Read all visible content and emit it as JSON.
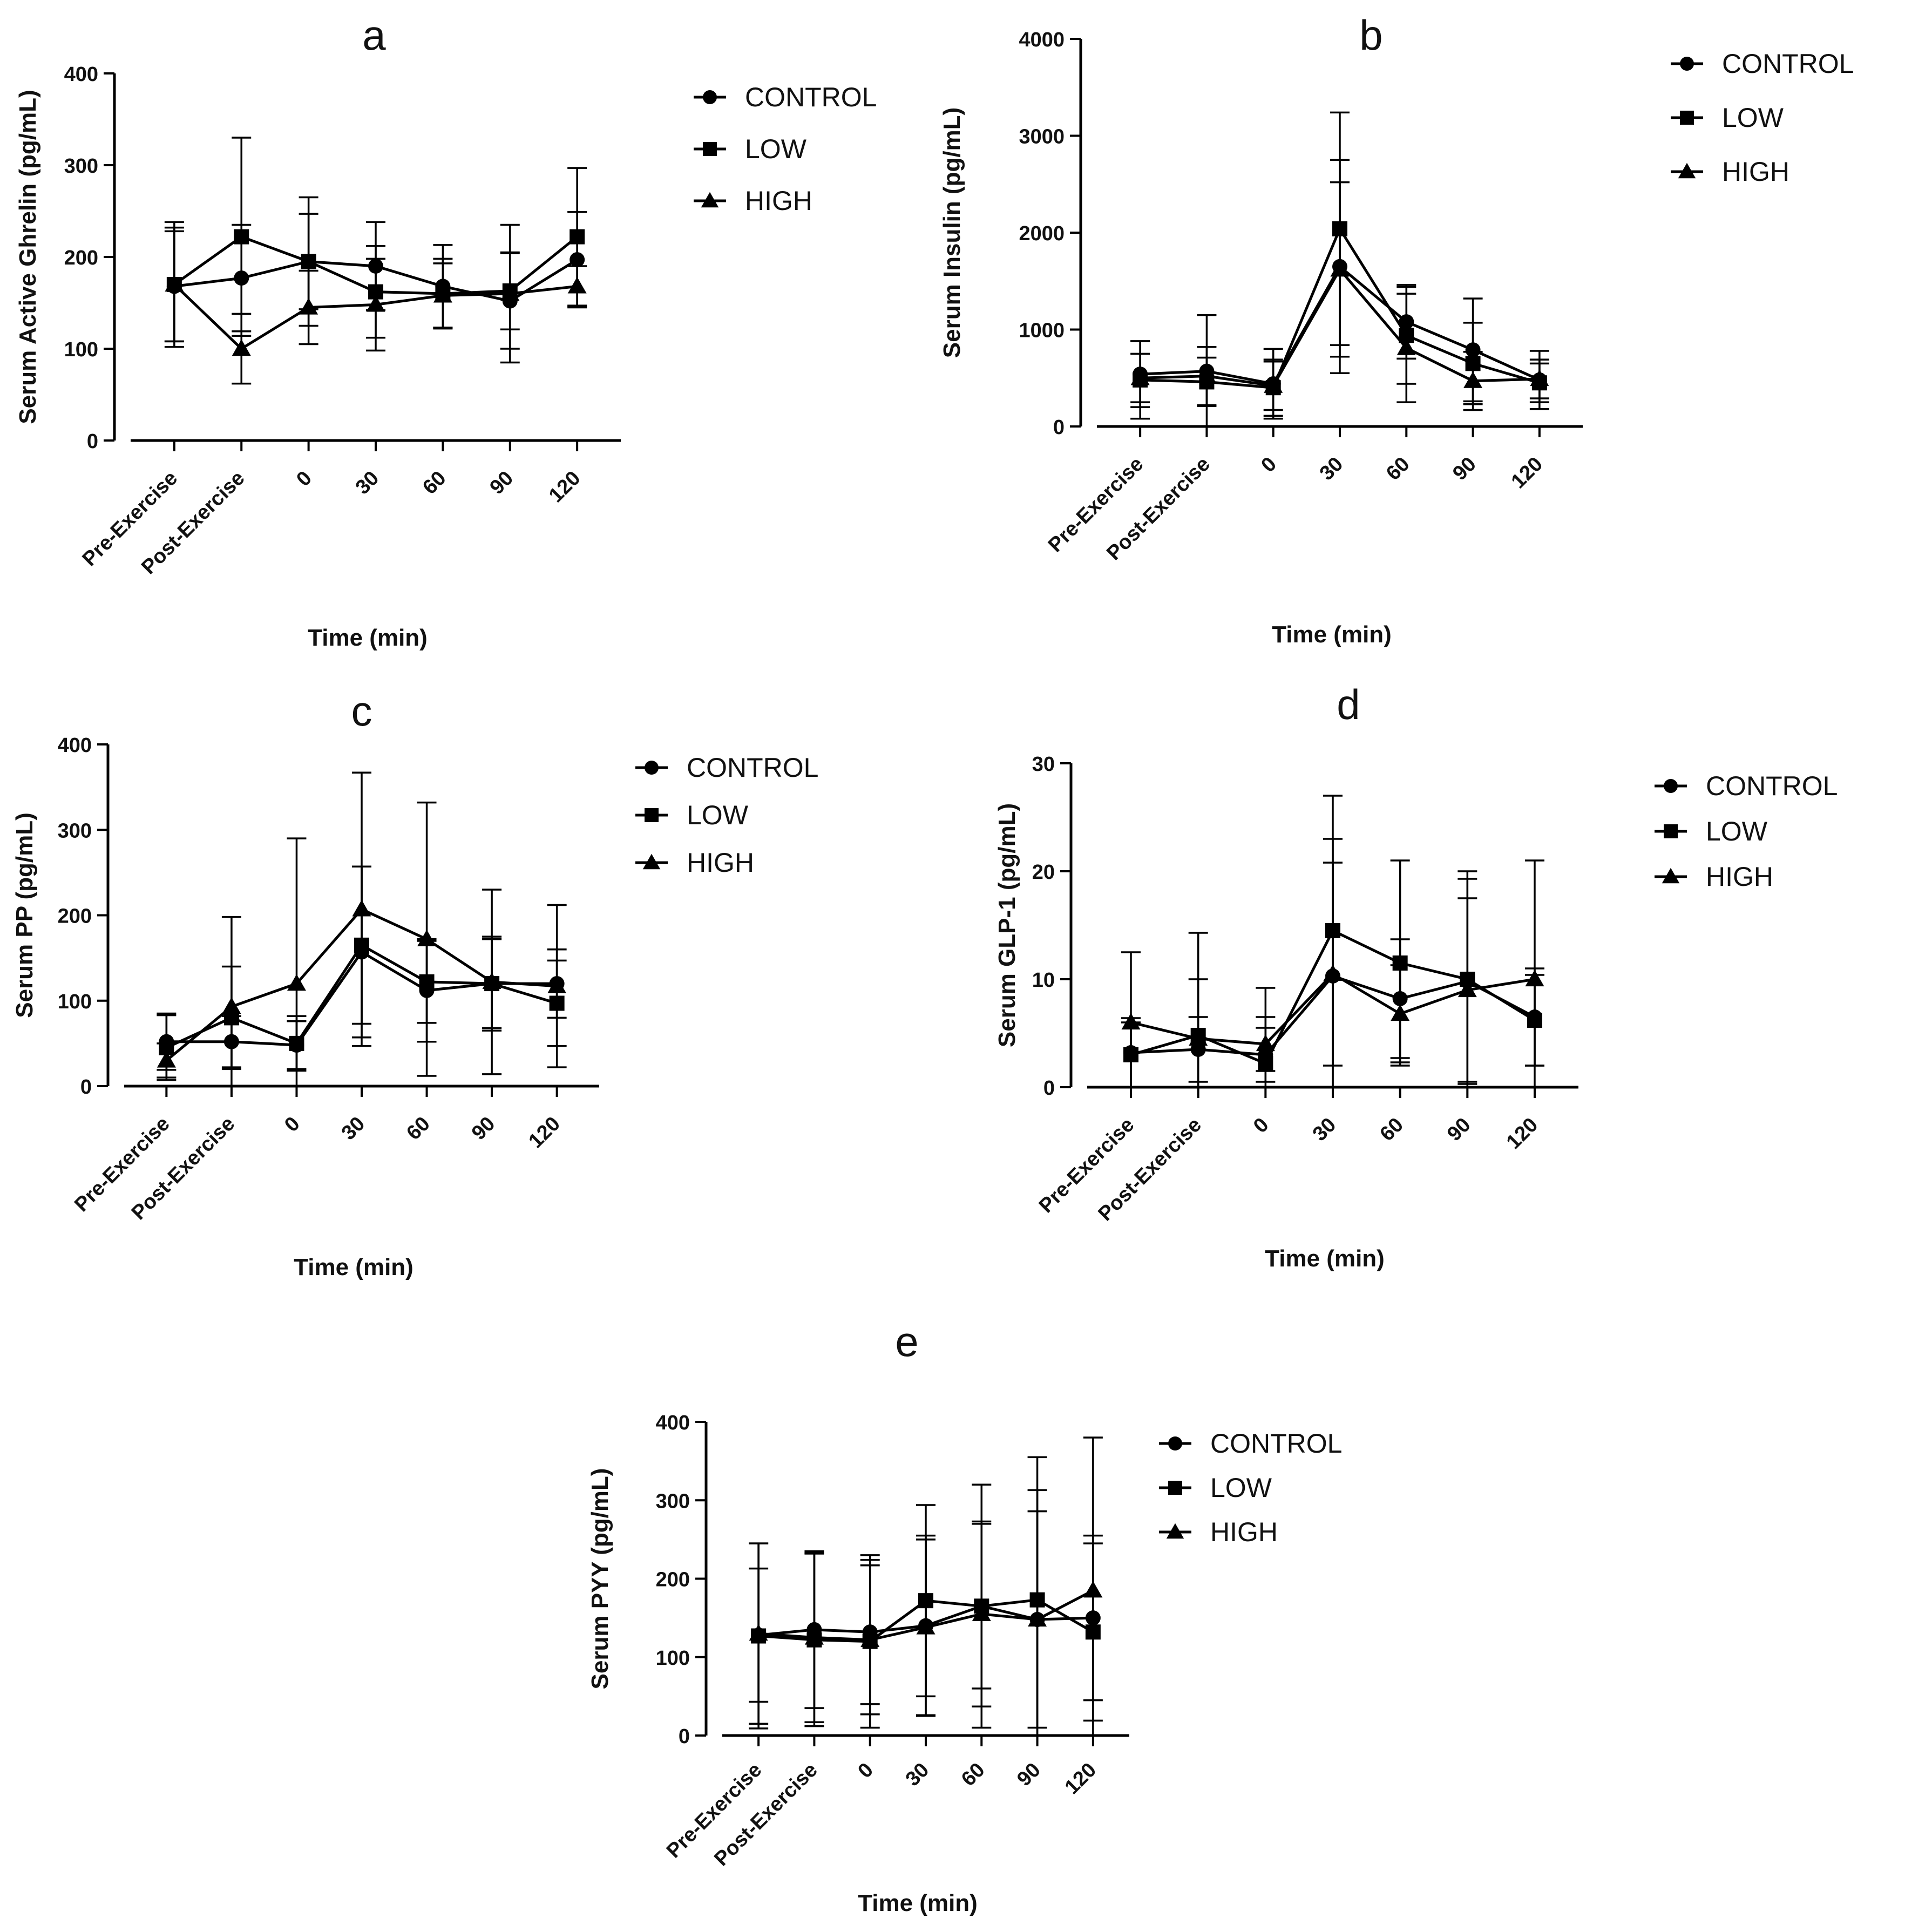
{
  "figure": {
    "series_names": [
      "CONTROL",
      "LOW",
      "HIGH"
    ],
    "marker_types": [
      "circle",
      "square",
      "triangle"
    ],
    "colors": {
      "line": "#000000",
      "text": "#111111",
      "background": "#ffffff"
    }
  },
  "chart_data": [
    {
      "type": "line",
      "panel": "a",
      "xlabel": "Time (min)",
      "ylabel": "Serum Active Ghrelin (pg/mL)",
      "categories": [
        "Pre-Exercise",
        "Post-Exercise",
        "0",
        "30",
        "60",
        "90",
        "120"
      ],
      "ylim": [
        0,
        400
      ],
      "yticks": [
        0,
        100,
        200,
        300,
        400
      ],
      "legend": [
        "CONTROL",
        "LOW",
        "HIGH"
      ],
      "series": [
        {
          "name": "CONTROL",
          "marker": "circle",
          "values": [
            168,
            177,
            195,
            190,
            168,
            152,
            197
          ],
          "err": [
            60,
            58,
            52,
            48,
            45,
            52,
            52
          ]
        },
        {
          "name": "LOW",
          "marker": "square",
          "values": [
            170,
            222,
            195,
            162,
            160,
            163,
            222
          ],
          "err": [
            68,
            108,
            70,
            50,
            38,
            42,
            75
          ]
        },
        {
          "name": "HIGH",
          "marker": "triangle",
          "values": [
            170,
            100,
            145,
            148,
            158,
            160,
            168
          ],
          "err": [
            62,
            38,
            40,
            50,
            35,
            75,
            22
          ]
        }
      ]
    },
    {
      "type": "line",
      "panel": "b",
      "xlabel": "Time (min)",
      "ylabel": "Serum  Insulin (pg/mL)",
      "categories": [
        "Pre-Exercise",
        "Post-Exercise",
        "0",
        "30",
        "60",
        "90",
        "120"
      ],
      "ylim": [
        0,
        4000
      ],
      "yticks": [
        0,
        1000,
        2000,
        3000,
        4000
      ],
      "legend": [
        "CONTROL",
        "LOW",
        "HIGH"
      ],
      "series": [
        {
          "name": "CONTROL",
          "marker": "circle",
          "values": [
            540,
            570,
            440,
            1650,
            1080,
            790,
            480
          ],
          "err": [
            340,
            580,
            360,
            1100,
            380,
            530,
            300
          ]
        },
        {
          "name": "LOW",
          "marker": "square",
          "values": [
            480,
            460,
            400,
            2040,
            940,
            650,
            450
          ],
          "err": [
            400,
            250,
            290,
            1200,
            500,
            420,
            200
          ]
        },
        {
          "name": "HIGH",
          "marker": "triangle",
          "values": [
            500,
            520,
            420,
            1620,
            810,
            470,
            490
          ],
          "err": [
            250,
            300,
            250,
            900,
            560,
            300,
            200
          ]
        }
      ]
    },
    {
      "type": "line",
      "panel": "c",
      "xlabel": "Time (min)",
      "ylabel": "Serum PP (pg/mL)",
      "categories": [
        "Pre-Exercise",
        "Post-Exercise",
        "0",
        "30",
        "60",
        "90",
        "120"
      ],
      "ylim": [
        0,
        400
      ],
      "yticks": [
        0,
        100,
        200,
        300,
        400
      ],
      "legend": [
        "CONTROL",
        "LOW",
        "HIGH"
      ],
      "series": [
        {
          "name": "CONTROL",
          "marker": "circle",
          "values": [
            52,
            52,
            48,
            157,
            112,
            120,
            120
          ],
          "err": [
            33,
            30,
            28,
            100,
            60,
            55,
            40
          ]
        },
        {
          "name": "LOW",
          "marker": "square",
          "values": [
            45,
            80,
            50,
            165,
            122,
            120,
            97
          ],
          "err": [
            38,
            60,
            32,
            92,
            48,
            52,
            50
          ]
        },
        {
          "name": "HIGH",
          "marker": "triangle",
          "values": [
            30,
            93,
            120,
            207,
            172,
            122,
            117
          ],
          "err": [
            20,
            105,
            170,
            160,
            160,
            108,
            95
          ]
        }
      ]
    },
    {
      "type": "line",
      "panel": "d",
      "xlabel": "Time (min)",
      "ylabel": "Serum GLP-1 (pg/mL)",
      "categories": [
        "Pre-Exercise",
        "Post-Exercise",
        "0",
        "30",
        "60",
        "90",
        "120"
      ],
      "ylim": [
        0,
        30
      ],
      "yticks": [
        0,
        10,
        20,
        30
      ],
      "legend": [
        "CONTROL",
        "LOW",
        "HIGH"
      ],
      "series": [
        {
          "name": "CONTROL",
          "marker": "circle",
          "values": [
            3.2,
            3.5,
            3.0,
            10.3,
            8.2,
            9.8,
            6.5
          ],
          "err": [
            3.2,
            3.0,
            2.5,
            10.5,
            5.5,
            9.5,
            4.5
          ]
        },
        {
          "name": "LOW",
          "marker": "square",
          "values": [
            3.0,
            4.8,
            2.2,
            14.5,
            11.5,
            10.0,
            6.2
          ],
          "err": [
            3.0,
            9.5,
            7.0,
            12.5,
            9.5,
            10.0,
            4.2
          ]
        },
        {
          "name": "HIGH",
          "marker": "triangle",
          "values": [
            6.0,
            4.5,
            4.0,
            10.5,
            6.8,
            9.0,
            10.0
          ],
          "err": [
            6.5,
            5.5,
            2.5,
            12.5,
            4.5,
            8.5,
            11.0
          ]
        }
      ]
    },
    {
      "type": "line",
      "panel": "e",
      "xlabel": "Time (min)",
      "ylabel": "Serum PYY (pg/mL)",
      "categories": [
        "Pre-Exercise",
        "Post-Exercise",
        "0",
        "30",
        "60",
        "90",
        "120"
      ],
      "ylim": [
        0,
        400
      ],
      "yticks": [
        0,
        100,
        200,
        300,
        400
      ],
      "legend": [
        "CONTROL",
        "LOW",
        "HIGH"
      ],
      "series": [
        {
          "name": "CONTROL",
          "marker": "circle",
          "values": [
            128,
            135,
            132,
            140,
            165,
            148,
            150
          ],
          "err": [
            85,
            100,
            92,
            115,
            105,
            165,
            105
          ]
        },
        {
          "name": "LOW",
          "marker": "square",
          "values": [
            127,
            122,
            120,
            172,
            165,
            173,
            132
          ],
          "err": [
            118,
            110,
            110,
            122,
            155,
            182,
            113
          ]
        },
        {
          "name": "HIGH",
          "marker": "triangle",
          "values": [
            130,
            125,
            122,
            138,
            155,
            148,
            185
          ],
          "err": [
            115,
            108,
            95,
            112,
            118,
            138,
            195
          ]
        }
      ]
    }
  ]
}
